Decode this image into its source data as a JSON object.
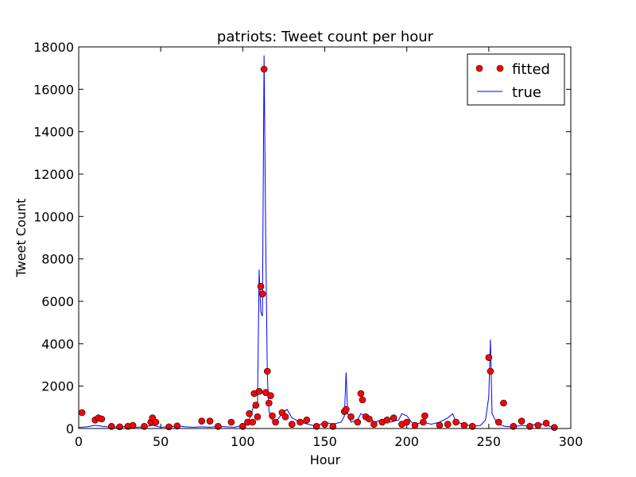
{
  "chart_data": {
    "type": "line",
    "title": "patriots: Tweet count per hour",
    "xlabel": "Hour",
    "ylabel": "Tweet Count",
    "xlim": [
      0,
      300
    ],
    "ylim": [
      0,
      18000
    ],
    "xticks": [
      0,
      50,
      100,
      150,
      200,
      250,
      300
    ],
    "yticks": [
      0,
      2000,
      4000,
      6000,
      8000,
      10000,
      12000,
      14000,
      16000,
      18000
    ],
    "legend": "upper right",
    "series": [
      {
        "name": "fitted",
        "kind": "scatter",
        "color": "#ff0000",
        "x": [
          2,
          10,
          12,
          14,
          20,
          25,
          30,
          33,
          40,
          44,
          45,
          47,
          55,
          60,
          75,
          80,
          85,
          93,
          100,
          103,
          104,
          106,
          107,
          108,
          109,
          110,
          111,
          112,
          113,
          114,
          115,
          116,
          117,
          118,
          120,
          124,
          126,
          130,
          135,
          139,
          145,
          150,
          155,
          162,
          163,
          166,
          170,
          172,
          173,
          175,
          177,
          180,
          185,
          188,
          192,
          197,
          200,
          205,
          210,
          211,
          220,
          225,
          230,
          235,
          240,
          250,
          251,
          256,
          259,
          265,
          270,
          275,
          280,
          285,
          290
        ],
        "values": [
          750,
          400,
          500,
          450,
          100,
          80,
          100,
          150,
          100,
          300,
          500,
          300,
          80,
          120,
          350,
          350,
          100,
          300,
          100,
          300,
          700,
          300,
          1650,
          1100,
          550,
          1750,
          6700,
          6350,
          16950,
          1700,
          2700,
          1200,
          1550,
          600,
          300,
          750,
          550,
          200,
          300,
          400,
          100,
          200,
          100,
          800,
          900,
          550,
          300,
          1650,
          1350,
          550,
          450,
          200,
          300,
          400,
          500,
          200,
          300,
          150,
          300,
          600,
          150,
          200,
          300,
          150,
          100,
          3350,
          2700,
          300,
          1200,
          100,
          350,
          100,
          150,
          250,
          50
        ]
      },
      {
        "name": "true",
        "kind": "line",
        "color": "#0000ff",
        "x": [
          0,
          5,
          10,
          15,
          20,
          25,
          30,
          35,
          40,
          45,
          50,
          55,
          60,
          65,
          70,
          75,
          80,
          85,
          90,
          95,
          100,
          103,
          105,
          107,
          108,
          109,
          110,
          111,
          112,
          113,
          114,
          115,
          116,
          118,
          120,
          122,
          125,
          127,
          130,
          135,
          140,
          145,
          150,
          155,
          160,
          162,
          163,
          164,
          166,
          170,
          172,
          175,
          178,
          180,
          185,
          190,
          195,
          197,
          200,
          203,
          205,
          210,
          215,
          220,
          225,
          228,
          230,
          235,
          240,
          245,
          248,
          250,
          251,
          252,
          254,
          256,
          260,
          265,
          270,
          275,
          280,
          285,
          290
        ],
        "values": [
          50,
          80,
          150,
          100,
          60,
          80,
          100,
          60,
          80,
          150,
          60,
          80,
          120,
          80,
          60,
          80,
          60,
          100,
          80,
          60,
          150,
          300,
          600,
          1200,
          1000,
          1100,
          7500,
          5500,
          5300,
          17600,
          9000,
          2500,
          800,
          400,
          300,
          500,
          800,
          900,
          500,
          300,
          200,
          100,
          300,
          200,
          300,
          600,
          2650,
          700,
          300,
          400,
          700,
          600,
          500,
          300,
          400,
          300,
          400,
          700,
          600,
          300,
          200,
          300,
          200,
          300,
          500,
          700,
          300,
          200,
          100,
          150,
          400,
          1500,
          4200,
          700,
          400,
          200,
          100,
          80,
          150,
          100,
          250,
          150,
          50
        ]
      }
    ]
  }
}
